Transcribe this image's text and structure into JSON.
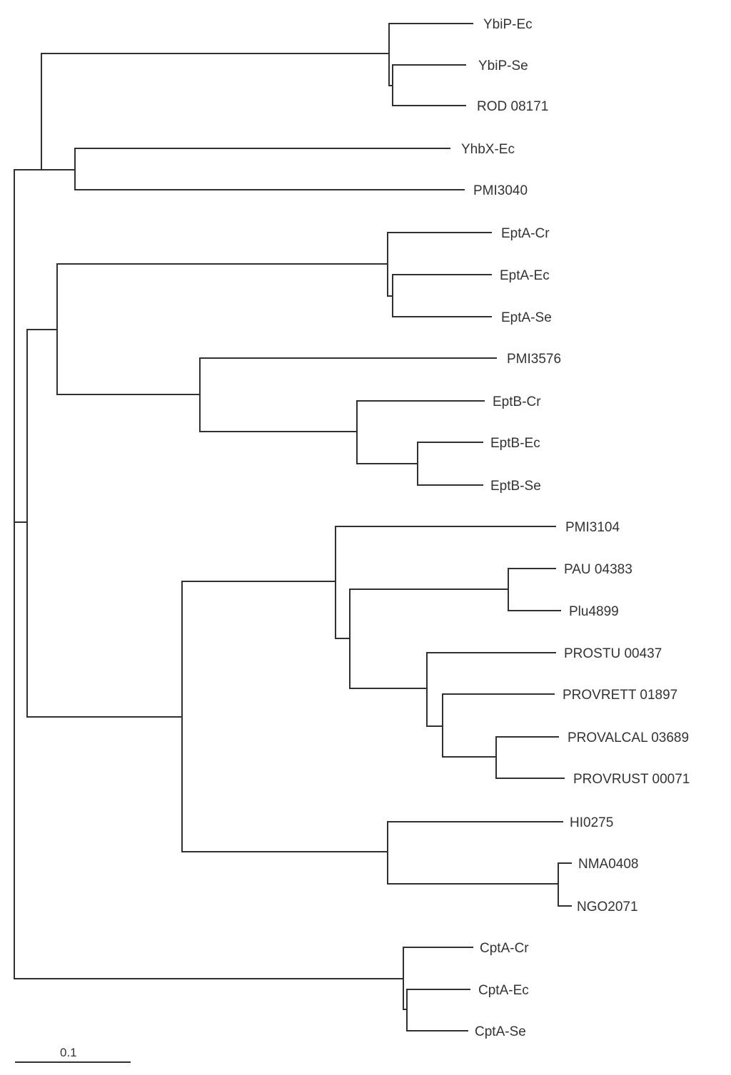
{
  "tree": {
    "leaves": [
      {
        "id": "ybip_ec",
        "label": "YbiP-Ec"
      },
      {
        "id": "ybip_se",
        "label": "YbiP-Se"
      },
      {
        "id": "rod",
        "label": "ROD 08171"
      },
      {
        "id": "yhbx",
        "label": "YhbX-Ec"
      },
      {
        "id": "pmi3040",
        "label": "PMI3040"
      },
      {
        "id": "epta_cr",
        "label": "EptA-Cr"
      },
      {
        "id": "epta_ec",
        "label": "EptA-Ec"
      },
      {
        "id": "epta_se",
        "label": "EptA-Se"
      },
      {
        "id": "pmi3576",
        "label": "PMI3576"
      },
      {
        "id": "eptb_cr",
        "label": "EptB-Cr"
      },
      {
        "id": "eptb_ec",
        "label": "EptB-Ec"
      },
      {
        "id": "eptb_se",
        "label": "EptB-Se"
      },
      {
        "id": "pmi3104",
        "label": "PMI3104"
      },
      {
        "id": "pau",
        "label": "PAU 04383"
      },
      {
        "id": "plu",
        "label": "Plu4899"
      },
      {
        "id": "prostu",
        "label": "PROSTU 00437"
      },
      {
        "id": "provrett",
        "label": "PROVRETT 01897"
      },
      {
        "id": "provalcal",
        "label": "PROVALCAL 03689"
      },
      {
        "id": "provrust",
        "label": "PROVRUST 00071"
      },
      {
        "id": "hi0275",
        "label": "HI0275"
      },
      {
        "id": "nma0408",
        "label": "NMA0408"
      },
      {
        "id": "ngo2071",
        "label": "NGO2071"
      },
      {
        "id": "cpta_cr",
        "label": "CptA-Cr"
      },
      {
        "id": "cpta_ec",
        "label": "CptA-Ec"
      },
      {
        "id": "cpta_se",
        "label": "CptA-Se"
      }
    ]
  },
  "scale_bar": {
    "label": "0.1",
    "value": 0.1
  },
  "colors": {
    "branch": "#303030",
    "label": "#333333",
    "background": "#ffffff"
  }
}
